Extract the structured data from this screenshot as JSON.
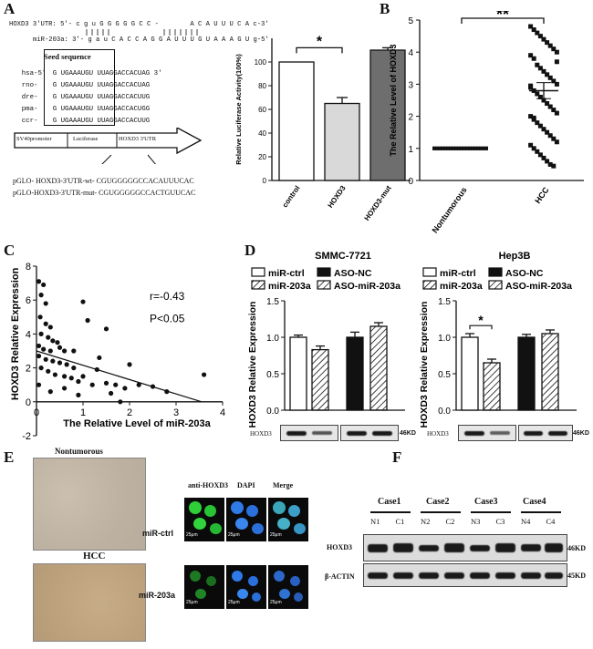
{
  "panels": {
    "A": {
      "label": "A",
      "seq": {
        "hoxd3_utr": "HOXD3 3'UTR: 5'- c g u G G G G G C C -        A C A U U U C A c-3'",
        "mir203a": "miR-203a: 3'- g a u C A C C A G G A U U U G U A A A G U g-5'",
        "seed_label": "Seed sequence",
        "species": [
          {
            "name": "hsa-5'",
            "seed": "G UGAAAUGU",
            "rest": "UUAGGACCACUAG 3'"
          },
          {
            "name": "rno-",
            "seed": "G UGAAAUGU",
            "rest": "UUAGGACCACUAG"
          },
          {
            "name": "dre-",
            "seed": "G UGAAAUGU",
            "rest": "UUAGGACCACUUG"
          },
          {
            "name": "pma-",
            "seed": "G UGAAAUGU",
            "rest": "UUAGGACCACUGG"
          },
          {
            "name": "ccr-",
            "seed": "G UGAAAUGU",
            "rest": "UUAGGACCACUUG"
          }
        ],
        "construct": [
          "SV40promoter",
          "Luciferase",
          "HOXD3 3'UTR"
        ],
        "wt": "pGLO- HOXD3-3'UTR-wt- CGUGGGGGCCACAUUUCAC",
        "mut": "pGLO-HOXD3-3'UTR-mut- CGUGGGGGCCACTGUUCAC"
      },
      "chart_data": {
        "type": "bar",
        "categories": [
          "control",
          "HOXD3",
          "HOXD3-mut"
        ],
        "values": [
          100,
          65,
          110
        ],
        "errors": [
          0,
          5,
          2
        ],
        "ylabel": "Relative Luciferase Activity(100%)",
        "ylim": [
          0,
          120
        ],
        "yticks": [
          0,
          20,
          40,
          60,
          80,
          100
        ],
        "colors": [
          "#ffffff",
          "#d9d9d9",
          "#6e6e6e"
        ],
        "significance": "*"
      }
    },
    "B": {
      "label": "B",
      "chart_data": {
        "type": "scatter",
        "categories": [
          "Nontumorous",
          "HCC"
        ],
        "ylabel": "The Relative Level of HOXD3",
        "ylim": [
          0,
          5
        ],
        "yticks": [
          0,
          1,
          2,
          3,
          4,
          5
        ],
        "hcc_mean": 2.8,
        "hcc_sem": 0.25,
        "hcc_values": [
          4.8,
          4.7,
          4.6,
          4.5,
          4.4,
          4.3,
          4.2,
          4.1,
          4.0,
          3.9,
          3.8,
          3.6,
          3.5,
          3.4,
          3.3,
          3.2,
          3.1,
          3.0,
          2.9,
          2.8,
          2.7,
          2.6,
          2.5,
          2.4,
          2.3,
          2.2,
          2.1,
          2.0,
          1.9,
          1.8,
          1.7,
          1.6,
          1.5,
          1.4,
          1.3,
          1.2,
          1.1,
          1.0,
          0.9,
          0.8,
          0.7,
          0.6,
          0.5,
          0.45,
          3.7,
          2.95,
          1.95
        ],
        "nontumorous_value": 1.0,
        "nontumorous_n": 40,
        "significance": "**"
      }
    },
    "C": {
      "label": "C",
      "chart_data": {
        "type": "scatter",
        "xlabel": "The Relative Level of miR-203a",
        "ylabel": "HOXD3 Relative Expression",
        "xlim": [
          0,
          4
        ],
        "ylim": [
          -2,
          8
        ],
        "xticks": [
          0,
          1,
          2,
          3,
          4
        ],
        "yticks": [
          -2,
          0,
          2,
          4,
          6,
          8
        ],
        "annotation_r": "r=-0.43",
        "annotation_p": "P<0.05",
        "fit": [
          [
            0,
            3.0
          ],
          [
            3.55,
            0
          ]
        ],
        "points": [
          [
            0.05,
            7.1
          ],
          [
            0.1,
            6.3
          ],
          [
            0.15,
            6.9
          ],
          [
            0.2,
            5.8
          ],
          [
            0.08,
            5.0
          ],
          [
            0.2,
            4.6
          ],
          [
            0.3,
            4.4
          ],
          [
            0.1,
            4.0
          ],
          [
            0.25,
            3.8
          ],
          [
            0.35,
            3.6
          ],
          [
            0.45,
            3.5
          ],
          [
            0.05,
            3.3
          ],
          [
            0.15,
            3.1
          ],
          [
            0.3,
            3.0
          ],
          [
            0.5,
            3.2
          ],
          [
            0.6,
            3.0
          ],
          [
            0.05,
            2.7
          ],
          [
            0.2,
            2.5
          ],
          [
            0.35,
            2.4
          ],
          [
            0.5,
            2.3
          ],
          [
            0.65,
            2.2
          ],
          [
            0.8,
            2.0
          ],
          [
            0.1,
            2.0
          ],
          [
            0.25,
            1.8
          ],
          [
            0.4,
            1.6
          ],
          [
            0.6,
            1.5
          ],
          [
            0.75,
            1.4
          ],
          [
            0.9,
            1.2
          ],
          [
            1.0,
            1.5
          ],
          [
            1.2,
            1.0
          ],
          [
            1.5,
            1.1
          ],
          [
            1.7,
            1.0
          ],
          [
            1.9,
            0.8
          ],
          [
            2.2,
            1.0
          ],
          [
            2.5,
            0.9
          ],
          [
            0.05,
            1.0
          ],
          [
            0.3,
            0.6
          ],
          [
            0.9,
            0.4
          ],
          [
            1.6,
            0.5
          ],
          [
            2.8,
            0.6
          ],
          [
            3.6,
            1.6
          ],
          [
            1.8,
            0.0
          ],
          [
            0.6,
            0.8
          ],
          [
            1.3,
            1.9
          ],
          [
            1.1,
            4.8
          ],
          [
            1.5,
            4.3
          ],
          [
            1.0,
            5.9
          ],
          [
            2.0,
            2.2
          ],
          [
            0.8,
            3.0
          ],
          [
            1.35,
            2.6
          ]
        ]
      }
    },
    "D": {
      "label": "D",
      "legend": [
        "miR-ctrl",
        "ASO-NC",
        "miR-203a",
        "ASO-miR-203a"
      ],
      "charts": [
        {
          "title": "SMMC-7721",
          "chart_data": {
            "type": "bar",
            "categories": [
              "miR-ctrl",
              "miR-203a",
              "ASO-NC",
              "ASO-miR-203a"
            ],
            "values": [
              1.0,
              0.83,
              1.0,
              1.15
            ],
            "errors": [
              0.03,
              0.05,
              0.07,
              0.05
            ],
            "ylabel": "HOXD3 Relative Expression",
            "ylim": [
              0,
              1.5
            ],
            "yticks": [
              0.0,
              0.5,
              1.0,
              1.5
            ]
          },
          "blot_label": "HOXD3",
          "kd": "46KD"
        },
        {
          "title": "Hep3B",
          "chart_data": {
            "type": "bar",
            "categories": [
              "miR-ctrl",
              "miR-203a",
              "ASO-NC",
              "ASO-miR-203a"
            ],
            "values": [
              1.0,
              0.65,
              1.0,
              1.05
            ],
            "errors": [
              0.05,
              0.05,
              0.04,
              0.05
            ],
            "ylabel": "HOXD3 Relative Expression",
            "ylim": [
              0,
              1.5
            ],
            "yticks": [
              0.0,
              0.5,
              1.0,
              1.5
            ],
            "significance": "*"
          },
          "blot_label": "HOXD3",
          "kd": "46KD"
        }
      ]
    },
    "E": {
      "label": "E",
      "top_title": "Nontumorous",
      "bottom_title": "HCC",
      "if_columns": [
        "anti-HOXD3",
        "DAPI",
        "Merge"
      ],
      "if_rows": [
        "miR-ctrl",
        "miR-203a"
      ],
      "scale": "25μm"
    },
    "F": {
      "label": "F",
      "cases": [
        "Case1",
        "Case2",
        "Case3",
        "Case4"
      ],
      "lanes": [
        "N1",
        "C1",
        "N2",
        "C2",
        "N3",
        "C3",
        "N4",
        "C4"
      ],
      "rows": [
        {
          "label": "HOXD3",
          "kd": "46KD"
        },
        {
          "label": "β-ACTIN",
          "kd": "45KD"
        }
      ]
    }
  }
}
